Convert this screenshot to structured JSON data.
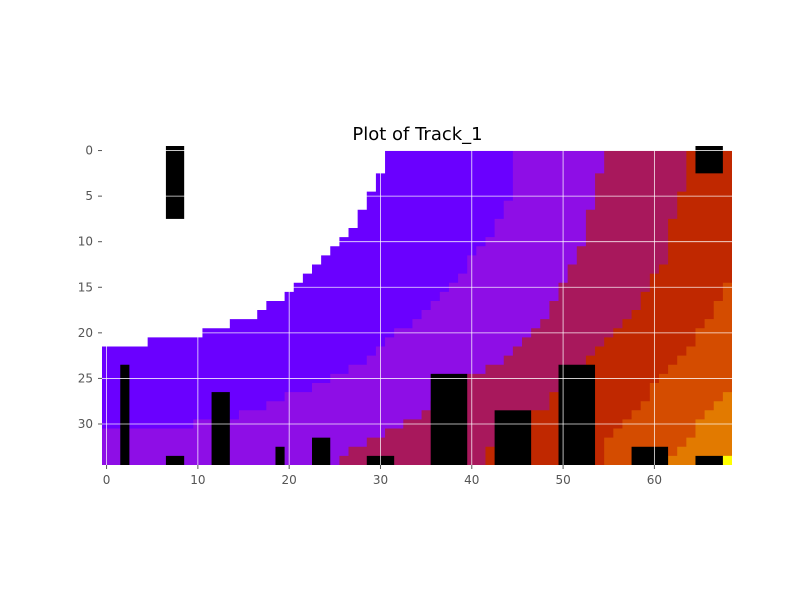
{
  "chart_data": {
    "type": "heatmap",
    "title": "Plot of Track_1",
    "xlabel": "",
    "ylabel": "",
    "x_ticks": [
      0,
      10,
      20,
      30,
      40,
      50,
      60
    ],
    "y_ticks": [
      0,
      5,
      10,
      15,
      20,
      25,
      30
    ],
    "xlim": [
      -0.5,
      68.5
    ],
    "ylim": [
      34.5,
      -0.5
    ],
    "grid": true,
    "colormap": "gnuplot",
    "zones": [
      {
        "level": 1,
        "color": "#6a00ff",
        "boundary": [
          [
            31.5,
            0
          ],
          [
            30.5,
            2.5
          ],
          [
            29.5,
            4.5
          ],
          [
            28.5,
            6.5
          ],
          [
            27.5,
            8.5
          ],
          [
            26.5,
            9.5
          ],
          [
            25.5,
            10.5
          ],
          [
            24.5,
            11.5
          ],
          [
            23.5,
            12.5
          ],
          [
            22.5,
            13.5
          ],
          [
            21.5,
            14.5
          ],
          [
            20.5,
            15.5
          ],
          [
            19.5,
            16.5
          ],
          [
            17.5,
            17.5
          ],
          [
            16.5,
            18.5
          ],
          [
            13.5,
            19.5
          ],
          [
            10.5,
            20.5
          ],
          [
            4.5,
            21.5
          ],
          [
            -0.5,
            22.5
          ]
        ]
      },
      {
        "level": 2,
        "color": "#8e0ee6",
        "boundary": [
          [
            44.5,
            0
          ],
          [
            44.5,
            5.5
          ],
          [
            43.5,
            7.5
          ],
          [
            42.5,
            9.5
          ],
          [
            41.5,
            10.5
          ],
          [
            40.5,
            11.5
          ],
          [
            39.5,
            13.5
          ],
          [
            38.5,
            14.5
          ],
          [
            37.5,
            15.5
          ],
          [
            36.5,
            16.5
          ],
          [
            35.5,
            17.5
          ],
          [
            34.5,
            18.5
          ],
          [
            33.5,
            19.5
          ],
          [
            31.5,
            20.5
          ],
          [
            30.5,
            21.5
          ],
          [
            29.5,
            22.5
          ],
          [
            28.5,
            23.5
          ],
          [
            26.5,
            24.5
          ],
          [
            24.5,
            25.5
          ],
          [
            22.5,
            26.5
          ],
          [
            19.5,
            27.5
          ],
          [
            17.5,
            28.5
          ],
          [
            14.5,
            29.5
          ],
          [
            9.5,
            30.5
          ],
          [
            -0.5,
            30.5
          ]
        ]
      },
      {
        "level": 3,
        "color": "#a8185c",
        "boundary": [
          [
            55.5,
            0
          ],
          [
            54.5,
            2.5
          ],
          [
            53.5,
            6.5
          ],
          [
            52.5,
            10.5
          ],
          [
            51.5,
            12.5
          ],
          [
            50.5,
            14.5
          ],
          [
            49.5,
            16.5
          ],
          [
            48.5,
            18.5
          ],
          [
            47.5,
            19.5
          ],
          [
            46.5,
            20.5
          ],
          [
            45.5,
            21.5
          ],
          [
            44.5,
            22.5
          ],
          [
            43.5,
            23.5
          ],
          [
            41.5,
            24.5
          ],
          [
            39.5,
            25.5
          ],
          [
            37.5,
            27.5
          ],
          [
            35.5,
            28.5
          ],
          [
            34.5,
            29.5
          ],
          [
            32.5,
            30.5
          ],
          [
            30.5,
            31.5
          ],
          [
            28.5,
            32.5
          ],
          [
            26.5,
            33.5
          ],
          [
            25.5,
            34.5
          ]
        ]
      },
      {
        "level": 4,
        "color": "#c02800",
        "boundary": [
          [
            63.5,
            0
          ],
          [
            63.5,
            4.5
          ],
          [
            62.5,
            7.5
          ],
          [
            61.5,
            9.5
          ],
          [
            61.5,
            12.5
          ],
          [
            60.5,
            13.5
          ],
          [
            59.5,
            15.5
          ],
          [
            58.5,
            17.5
          ],
          [
            57.5,
            18.5
          ],
          [
            56.5,
            19.5
          ],
          [
            55.5,
            20.5
          ],
          [
            54.5,
            21.5
          ],
          [
            53.5,
            22.5
          ],
          [
            52.5,
            24.5
          ],
          [
            51.5,
            25.5
          ],
          [
            49.5,
            26.5
          ],
          [
            48.5,
            28.5
          ],
          [
            46.5,
            30.5
          ],
          [
            44.5,
            32.5
          ],
          [
            41.5,
            34.5
          ]
        ]
      },
      {
        "level": 5,
        "color": "#d44c00",
        "boundary": [
          [
            68.5,
            14.5
          ],
          [
            67.5,
            16.5
          ],
          [
            66.5,
            18.5
          ],
          [
            65.5,
            19.5
          ],
          [
            64.5,
            21.5
          ],
          [
            63.5,
            22.5
          ],
          [
            62.5,
            23.5
          ],
          [
            61.5,
            24.5
          ],
          [
            60.5,
            25.5
          ],
          [
            59.5,
            27.5
          ],
          [
            58.5,
            28.5
          ],
          [
            57.5,
            29.5
          ],
          [
            56.5,
            30.5
          ],
          [
            55.5,
            31.5
          ],
          [
            54.5,
            34.5
          ]
        ]
      },
      {
        "level": 6,
        "color": "#e27a00",
        "boundary": [
          [
            68.5,
            26.5
          ],
          [
            67.5,
            27.5
          ],
          [
            66.5,
            28.5
          ],
          [
            65.5,
            29.5
          ],
          [
            64.5,
            31.5
          ],
          [
            63.5,
            32.5
          ],
          [
            62.5,
            33.5
          ],
          [
            61.5,
            34.5
          ]
        ]
      },
      {
        "level": 7,
        "color": "#eeb000",
        "boundary": [
          [
            68.5,
            33.5
          ],
          [
            67.5,
            34.5
          ]
        ]
      },
      {
        "level": 8,
        "color": "#ffff00",
        "cells": [
          [
            68,
            34
          ]
        ]
      }
    ],
    "obstacles": [
      {
        "x": [
          6.5,
          8.5
        ],
        "y": [
          -0.5,
          7.5
        ]
      },
      {
        "x": [
          64.5,
          67.5
        ],
        "y": [
          -0.5,
          2.5
        ]
      },
      {
        "x": [
          1.5,
          2.5
        ],
        "y": [
          23.5,
          34.5
        ]
      },
      {
        "x": [
          11.5,
          13.5
        ],
        "y": [
          26.5,
          34.5
        ]
      },
      {
        "x": [
          6.5,
          8.5
        ],
        "y": [
          33.5,
          34.5
        ]
      },
      {
        "x": [
          18.5,
          19.5
        ],
        "y": [
          32.5,
          34.5
        ]
      },
      {
        "x": [
          22.5,
          24.5
        ],
        "y": [
          31.5,
          34.5
        ]
      },
      {
        "x": [
          28.5,
          31.5
        ],
        "y": [
          33.5,
          34.5
        ]
      },
      {
        "x": [
          35.5,
          39.5
        ],
        "y": [
          24.5,
          34.5
        ]
      },
      {
        "x": [
          42.5,
          46.5
        ],
        "y": [
          28.5,
          34.5
        ]
      },
      {
        "x": [
          49.5,
          53.5
        ],
        "y": [
          23.5,
          34.5
        ]
      },
      {
        "x": [
          57.5,
          61.5
        ],
        "y": [
          32.5,
          34.5
        ]
      },
      {
        "x": [
          64.5,
          67.5
        ],
        "y": [
          33.5,
          34.5
        ]
      }
    ]
  }
}
